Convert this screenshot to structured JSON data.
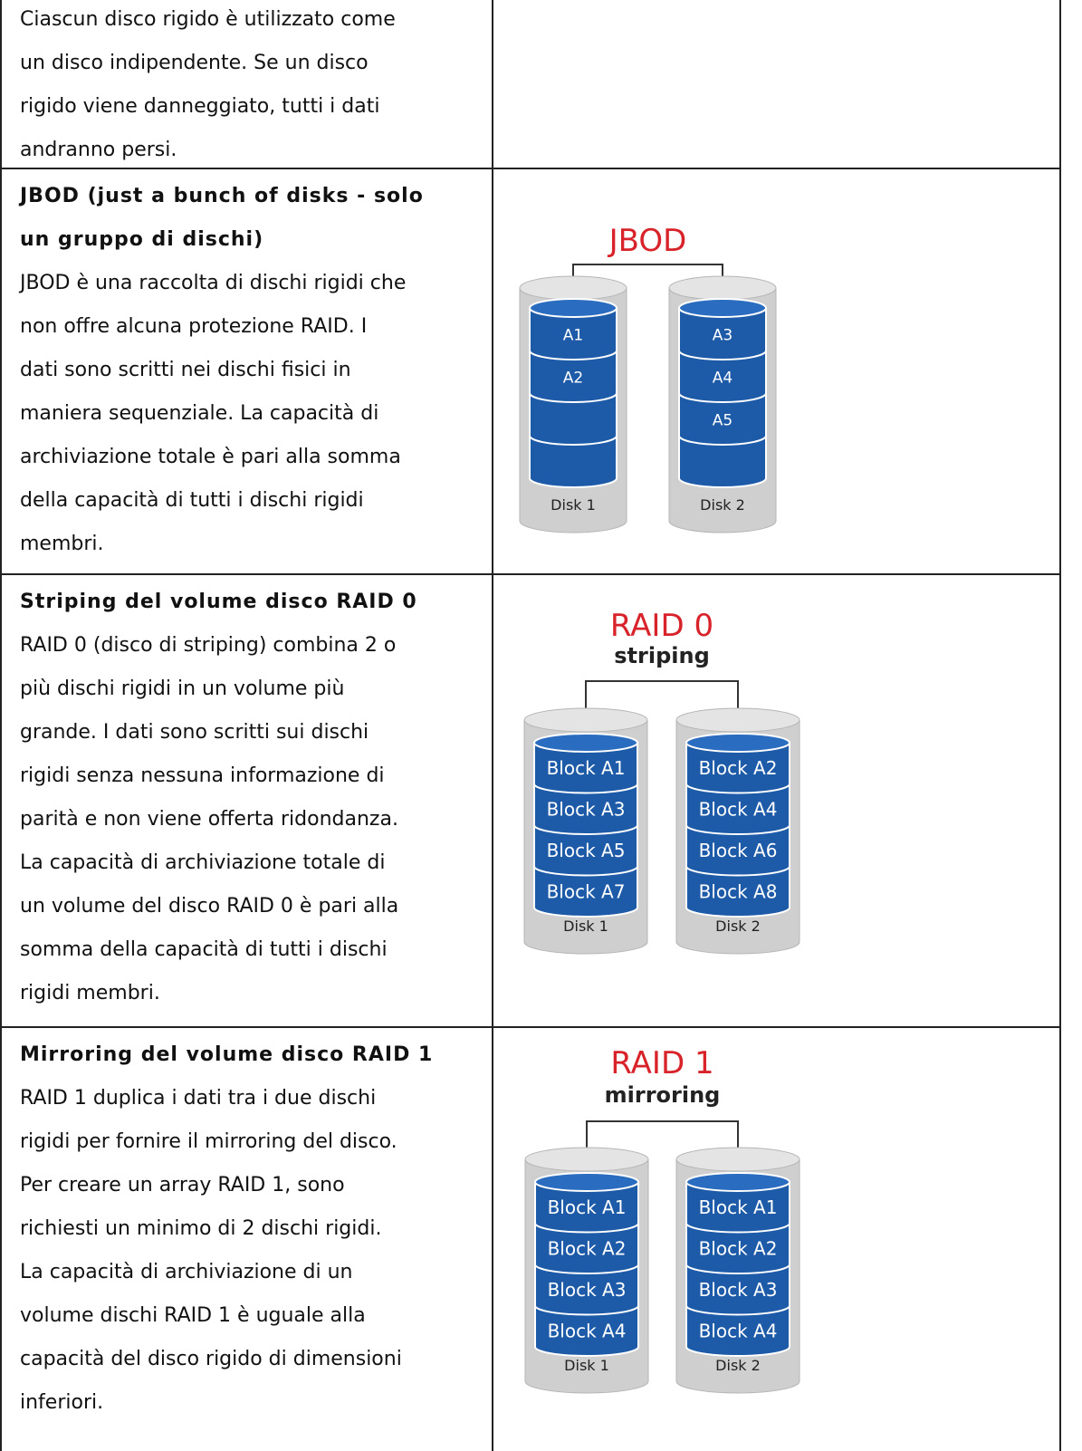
{
  "rows": [
    {
      "title": [],
      "text": [
        "Ciascun disco rigido è utilizzato come",
        "un disco indipendente. Se un disco",
        "rigido viene danneggiato, tutti i dati",
        "andranno persi."
      ]
    },
    {
      "title": [
        "JBOD (just a bunch of disks - solo",
        "un gruppo di dischi)"
      ],
      "text": [
        "JBOD è una raccolta di dischi rigidi che",
        "non offre alcuna protezione RAID. I",
        "dati sono scritti nei dischi fisici in",
        "maniera sequenziale. La capacità di",
        "archiviazione totale è pari alla somma",
        "della capacità di tutti i dischi rigidi",
        "membri."
      ],
      "diagram": {
        "title": "JBOD",
        "disks": [
          {
            "label": "Disk 1",
            "blocks": [
              "A1",
              "A2"
            ]
          },
          {
            "label": "Disk 2",
            "blocks": [
              "A3",
              "A4",
              "A5"
            ]
          }
        ]
      }
    },
    {
      "title": [
        "Striping del volume disco RAID 0"
      ],
      "text": [
        "RAID 0 (disco di striping) combina 2 o",
        "più dischi rigidi in un volume più",
        "grande. I dati sono scritti sui dischi",
        "rigidi senza nessuna informazione di",
        "parità e non viene offerta ridondanza.",
        "La capacità di archiviazione totale di",
        "un volume del disco RAID 0 è pari alla",
        "somma della capacità di tutti i dischi",
        "rigidi membri."
      ],
      "diagram": {
        "title": "RAID 0",
        "subtitle": "striping",
        "disks": [
          {
            "label": "Disk 1",
            "blocks": [
              "Block A1",
              "Block A3",
              "Block A5",
              "Block A7"
            ]
          },
          {
            "label": "Disk 2",
            "blocks": [
              "Block A2",
              "Block A4",
              "Block A6",
              "Block A8"
            ]
          }
        ]
      }
    },
    {
      "title": [
        "Mirroring del volume disco RAID 1"
      ],
      "text": [
        "RAID 1 duplica i dati tra i due dischi",
        "rigidi per fornire il mirroring del disco.",
        "Per creare un array RAID 1, sono",
        "richiesti un minimo di 2 dischi rigidi.",
        "La capacità di archiviazione di un",
        "volume dischi RAID 1 è uguale alla",
        "capacità del disco rigido di dimensioni",
        "inferiori."
      ],
      "diagram": {
        "title": "RAID 1",
        "subtitle": "mirroring",
        "disks": [
          {
            "label": "Disk 1",
            "blocks": [
              "Block A1",
              "Block A2",
              "Block A3",
              "Block A4"
            ]
          },
          {
            "label": "Disk 2",
            "blocks": [
              "Block A1",
              "Block A2",
              "Block A3",
              "Block A4"
            ]
          }
        ]
      }
    }
  ]
}
